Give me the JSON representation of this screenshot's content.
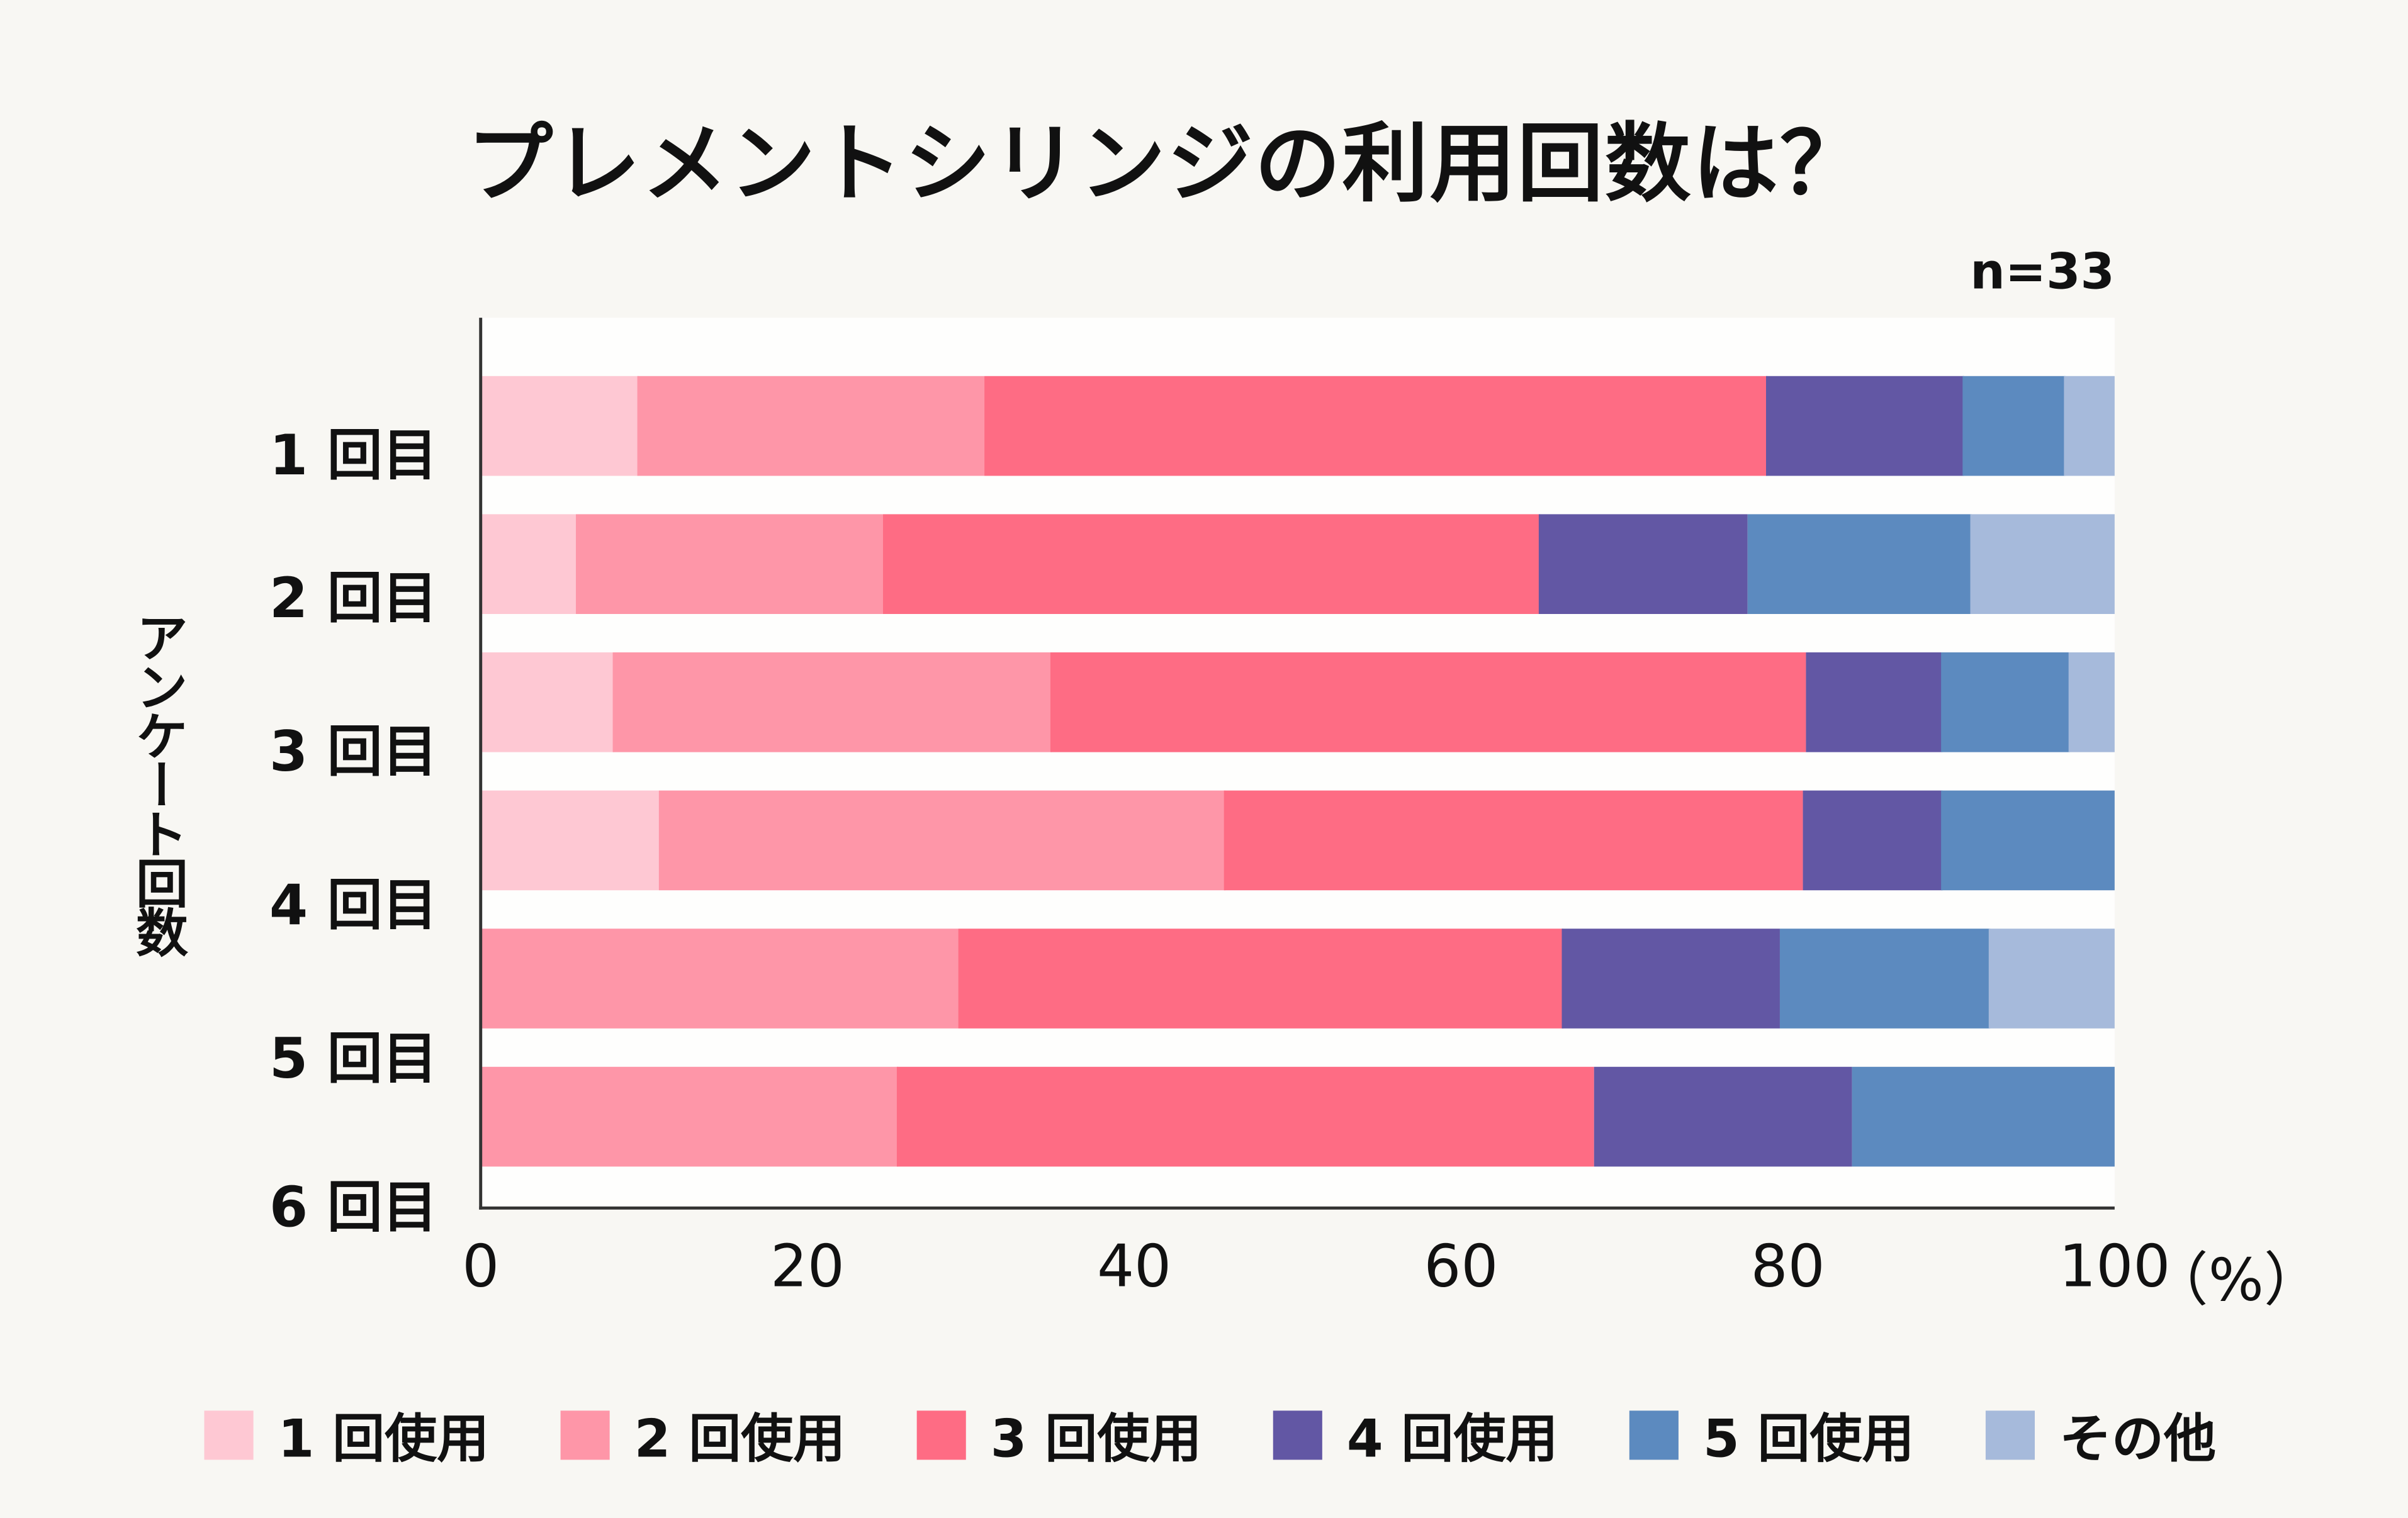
{
  "chart_data": {
    "type": "bar",
    "orientation": "horizontal",
    "stacked": true,
    "title": "プレメントシリンジの利用回数は？",
    "note": "n=33",
    "ylabel": "アンケート回数",
    "xlabel": "",
    "x_unit": "（%）",
    "xlim": [
      0,
      100
    ],
    "x_ticks": [
      "0",
      "20",
      "40",
      "60",
      "80",
      "100"
    ],
    "grid": false,
    "legend_position": "bottom",
    "categories": [
      "1 回目",
      "2 回目",
      "3 回目",
      "4 回目",
      "5 回目",
      "6 回目"
    ],
    "series": [
      {
        "name": "1 回使用",
        "color": "#fec8d3",
        "values": [
          9.6,
          5.8,
          8.1,
          10.9,
          0,
          0
        ]
      },
      {
        "name": "2 回使用",
        "color": "#fe96a8",
        "values": [
          21.2,
          18.8,
          26.8,
          34.6,
          29.2,
          25.5
        ]
      },
      {
        "name": "3 回使用",
        "color": "#fe6c84",
        "values": [
          47.9,
          40.2,
          46.2,
          35.4,
          37.0,
          42.6
        ]
      },
      {
        "name": "4 回使用",
        "color": "#6257a4",
        "values": [
          12.0,
          12.7,
          8.3,
          8.5,
          13.3,
          15.8
        ]
      },
      {
        "name": "5 回使用",
        "color": "#5c8abf",
        "values": [
          6.2,
          13.7,
          7.8,
          10.6,
          12.8,
          16.1
        ]
      },
      {
        "name": "その他",
        "color": "#a6badb",
        "values": [
          3.1,
          8.8,
          2.8,
          0,
          7.7,
          0
        ]
      }
    ]
  }
}
